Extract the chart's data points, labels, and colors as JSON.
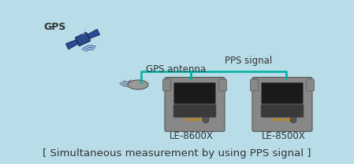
{
  "bg_color": "#b8dde8",
  "title_text": "[ Simultaneous measurement by using PPS signal ]",
  "title_color": "#333333",
  "title_fontsize": 9.5,
  "label_gps": "GPS",
  "label_antenna": "GPS antenna",
  "label_pps": "PPS signal",
  "label_device1": "LE-8600X",
  "label_device2": "LE-8500X",
  "device_color": "#888888",
  "device_dark": "#555555",
  "device_screen": "#1a1a1a",
  "pps_line_color": "#00b0a0",
  "satellite_body": "#2a4a8a",
  "satellite_panel": "#2a4a8a",
  "antenna_color": "#999999",
  "text_color": "#333333",
  "label_fontsize": 8.5
}
